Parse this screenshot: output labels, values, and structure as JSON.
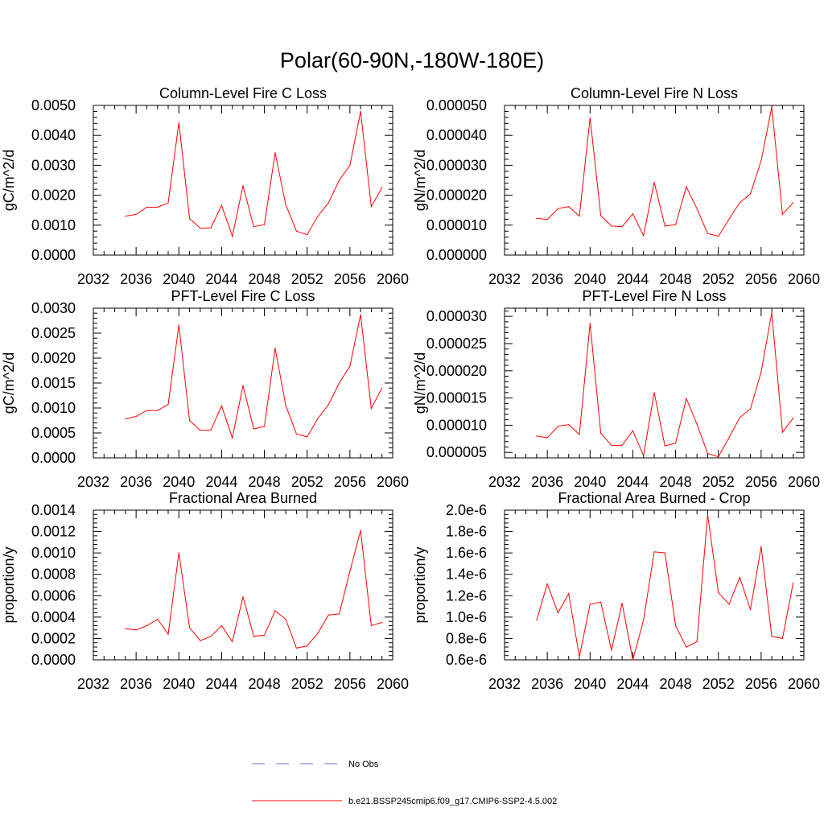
{
  "page_title": "Polar(60-90N,-180W-180E)",
  "colors": {
    "model_line": "#ff0000",
    "obs_line": "#6a6acd",
    "axis": "#000000"
  },
  "legend": {
    "obs_label": "No Obs",
    "model_label": "b.e21.BSSP245cmip6.f09_g17.CMIP6-SSP2-4.5.002"
  },
  "chart_data": [
    {
      "type": "line",
      "title": "Column-Level Fire C Loss",
      "ylabel": "gC/m^2/d",
      "xlabel": "",
      "xlim": [
        2032,
        2060
      ],
      "ylim": [
        0,
        0.005
      ],
      "xticks": [
        2032,
        2036,
        2040,
        2044,
        2048,
        2052,
        2056,
        2060
      ],
      "xtick_labels": [
        "2032",
        "2036",
        "2040",
        "2044",
        "2048",
        "2052",
        "2056",
        "2060"
      ],
      "yticks": [
        0,
        0.001,
        0.002,
        0.003,
        0.004,
        0.005
      ],
      "ytick_labels": [
        "0.0000",
        "0.0010",
        "0.0020",
        "0.0030",
        "0.0040",
        "0.0050"
      ],
      "x": [
        2035,
        2036,
        2037,
        2038,
        2039,
        2040,
        2041,
        2042,
        2043,
        2044,
        2045,
        2046,
        2047,
        2048,
        2049,
        2050,
        2051,
        2052,
        2053,
        2054,
        2055,
        2056,
        2057,
        2058,
        2059
      ],
      "series": [
        {
          "name": "b.e21.BSSP245cmip6.f09_g17.CMIP6-SSP2-4.5.002",
          "values": [
            0.0013,
            0.00136,
            0.0016,
            0.0016,
            0.00174,
            0.00443,
            0.00122,
            0.0009,
            0.00091,
            0.00166,
            0.00063,
            0.00232,
            0.00095,
            0.00102,
            0.00342,
            0.00168,
            0.0008,
            0.00068,
            0.0013,
            0.00175,
            0.0025,
            0.003,
            0.0048,
            0.00162,
            0.00225
          ]
        }
      ]
    },
    {
      "type": "line",
      "title": "Column-Level Fire N Loss",
      "ylabel": "gN/m^2/d",
      "xlabel": "",
      "xlim": [
        2032,
        2060
      ],
      "ylim": [
        0,
        5e-05
      ],
      "xticks": [
        2032,
        2036,
        2040,
        2044,
        2048,
        2052,
        2056,
        2060
      ],
      "xtick_labels": [
        "2032",
        "2036",
        "2040",
        "2044",
        "2048",
        "2052",
        "2056",
        "2060"
      ],
      "yticks": [
        0,
        1e-05,
        2e-05,
        3e-05,
        4e-05,
        5e-05
      ],
      "ytick_labels": [
        "0.000000",
        "0.000010",
        "0.000020",
        "0.000030",
        "0.000040",
        "0.000050"
      ],
      "x": [
        2035,
        2036,
        2037,
        2038,
        2039,
        2040,
        2041,
        2042,
        2043,
        2044,
        2045,
        2046,
        2047,
        2048,
        2049,
        2050,
        2051,
        2052,
        2053,
        2054,
        2055,
        2056,
        2057,
        2058,
        2059
      ],
      "series": [
        {
          "name": "b.e21.BSSP245cmip6.f09_g17.CMIP6-SSP2-4.5.002",
          "values": [
            1.23e-05,
            1.19e-05,
            1.55e-05,
            1.62e-05,
            1.3e-05,
            4.58e-05,
            1.32e-05,
            9.7e-06,
            9.5e-06,
            1.38e-05,
            6.5e-06,
            2.43e-05,
            9.7e-06,
            1.02e-05,
            2.28e-05,
            1.55e-05,
            7.2e-06,
            6.3e-06,
            1.2e-05,
            1.75e-05,
            2.05e-05,
            3.15e-05,
            4.95e-05,
            1.36e-05,
            1.75e-05
          ]
        }
      ]
    },
    {
      "type": "line",
      "title": "PFT-Level Fire C Loss",
      "ylabel": "gC/m^2/d",
      "xlabel": "",
      "xlim": [
        2032,
        2060
      ],
      "ylim": [
        0,
        0.003
      ],
      "xticks": [
        2032,
        2036,
        2040,
        2044,
        2048,
        2052,
        2056,
        2060
      ],
      "xtick_labels": [
        "2032",
        "2036",
        "2040",
        "2044",
        "2048",
        "2052",
        "2056",
        "2060"
      ],
      "yticks": [
        0,
        0.0005,
        0.001,
        0.0015,
        0.002,
        0.0025,
        0.003
      ],
      "ytick_labels": [
        "0.0000",
        "0.0005",
        "0.0010",
        "0.0015",
        "0.0020",
        "0.0025",
        "0.0030"
      ],
      "x": [
        2035,
        2036,
        2037,
        2038,
        2039,
        2040,
        2041,
        2042,
        2043,
        2044,
        2045,
        2046,
        2047,
        2048,
        2049,
        2050,
        2051,
        2052,
        2053,
        2054,
        2055,
        2056,
        2057,
        2058,
        2059
      ],
      "series": [
        {
          "name": "b.e21.BSSP245cmip6.f09_g17.CMIP6-SSP2-4.5.002",
          "values": [
            0.00078,
            0.00083,
            0.00095,
            0.00095,
            0.00107,
            0.00266,
            0.00075,
            0.00055,
            0.00056,
            0.00104,
            0.0004,
            0.00145,
            0.00058,
            0.00063,
            0.0022,
            0.00105,
            0.00048,
            0.00042,
            0.00079,
            0.00107,
            0.0015,
            0.00184,
            0.00287,
            0.00099,
            0.0014
          ]
        }
      ]
    },
    {
      "type": "line",
      "title": "PFT-Level Fire N Loss",
      "ylabel": "gN/m^2/d",
      "xlabel": "",
      "xlim": [
        2032,
        2060
      ],
      "ylim": [
        4e-06,
        3.15e-05
      ],
      "xticks": [
        2032,
        2036,
        2040,
        2044,
        2048,
        2052,
        2056,
        2060
      ],
      "xtick_labels": [
        "2032",
        "2036",
        "2040",
        "2044",
        "2048",
        "2052",
        "2056",
        "2060"
      ],
      "yticks": [
        5e-06,
        1e-05,
        1.5e-05,
        2e-05,
        2.5e-05,
        3e-05
      ],
      "ytick_labels": [
        "0.000005",
        "0.000010",
        "0.000015",
        "0.000020",
        "0.000025",
        "0.000030"
      ],
      "x": [
        2035,
        2036,
        2037,
        2038,
        2039,
        2040,
        2041,
        2042,
        2043,
        2044,
        2045,
        2046,
        2047,
        2048,
        2049,
        2050,
        2051,
        2052,
        2053,
        2054,
        2055,
        2056,
        2057,
        2058,
        2059
      ],
      "series": [
        {
          "name": "b.e21.BSSP245cmip6.f09_g17.CMIP6-SSP2-4.5.002",
          "values": [
            8e-06,
            7.7e-06,
            9.8e-06,
            1.01e-05,
            8.3e-06,
            2.87e-05,
            8.5e-06,
            6.3e-06,
            6.3e-06,
            9e-06,
            4.4e-06,
            1.6e-05,
            6.2e-06,
            6.7e-06,
            1.49e-05,
            1.02e-05,
            4.8e-06,
            4.2e-06,
            7.7e-06,
            1.14e-05,
            1.3e-05,
            1.98e-05,
            3.07e-05,
            8.7e-06,
            1.13e-05
          ]
        }
      ]
    },
    {
      "type": "line",
      "title": "Fractional Area Burned",
      "ylabel": "proportion/y",
      "xlabel": "",
      "xlim": [
        2032,
        2060
      ],
      "ylim": [
        0,
        0.0014
      ],
      "xticks": [
        2032,
        2036,
        2040,
        2044,
        2048,
        2052,
        2056,
        2060
      ],
      "xtick_labels": [
        "2032",
        "2036",
        "2040",
        "2044",
        "2048",
        "2052",
        "2056",
        "2060"
      ],
      "yticks": [
        0,
        0.0002,
        0.0004,
        0.0006,
        0.0008,
        0.001,
        0.0012,
        0.0014
      ],
      "ytick_labels": [
        "0.0000",
        "0.0002",
        "0.0004",
        "0.0006",
        "0.0008",
        "0.0010",
        "0.0012",
        "0.0014"
      ],
      "x": [
        2035,
        2036,
        2037,
        2038,
        2039,
        2040,
        2041,
        2042,
        2043,
        2044,
        2045,
        2046,
        2047,
        2048,
        2049,
        2050,
        2051,
        2052,
        2053,
        2054,
        2055,
        2056,
        2057,
        2058,
        2059
      ],
      "series": [
        {
          "name": "b.e21.BSSP245cmip6.f09_g17.CMIP6-SSP2-4.5.002",
          "values": [
            0.00029,
            0.00028,
            0.00032,
            0.00038,
            0.00024,
            0.001,
            0.0003,
            0.00018,
            0.00022,
            0.00032,
            0.00017,
            0.00059,
            0.00022,
            0.00023,
            0.00046,
            0.00038,
            0.00011,
            0.00013,
            0.00025,
            0.00042,
            0.00043,
            0.00083,
            0.00121,
            0.00032,
            0.00035
          ]
        }
      ]
    },
    {
      "type": "line",
      "title": "Fractional Area Burned - Crop",
      "ylabel": "proportion/y",
      "xlabel": "",
      "xlim": [
        2032,
        2060
      ],
      "ylim": [
        6e-07,
        2e-06
      ],
      "xticks": [
        2032,
        2036,
        2040,
        2044,
        2048,
        2052,
        2056,
        2060
      ],
      "xtick_labels": [
        "2032",
        "2036",
        "2040",
        "2044",
        "2048",
        "2052",
        "2056",
        "2060"
      ],
      "yticks": [
        6e-07,
        8e-07,
        1e-06,
        1.2e-06,
        1.4e-06,
        1.6e-06,
        1.8e-06,
        2e-06
      ],
      "ytick_labels": [
        "0.6e-6",
        "0.8e-6",
        "1.0e-6",
        "1.2e-6",
        "1.4e-6",
        "1.6e-6",
        "1.8e-6",
        "2.0e-6"
      ],
      "x": [
        2035,
        2036,
        2037,
        2038,
        2039,
        2040,
        2041,
        2042,
        2043,
        2044,
        2045,
        2046,
        2047,
        2048,
        2049,
        2050,
        2051,
        2052,
        2053,
        2054,
        2055,
        2056,
        2057,
        2058,
        2059
      ],
      "series": [
        {
          "name": "b.e21.BSSP245cmip6.f09_g17.CMIP6-SSP2-4.5.002",
          "values": [
            9.7e-07,
            1.31e-06,
            1.04e-06,
            1.22e-06,
            6.3e-07,
            1.12e-06,
            1.14e-06,
            6.9e-07,
            1.13e-06,
            6e-07,
            9.7e-07,
            1.61e-06,
            1.6e-06,
            9.2e-07,
            7.2e-07,
            7.7e-07,
            1.96e-06,
            1.23e-06,
            1.12e-06,
            1.37e-06,
            1.07e-06,
            1.66e-06,
            8.2e-07,
            8e-07,
            1.32e-06
          ]
        }
      ]
    }
  ]
}
